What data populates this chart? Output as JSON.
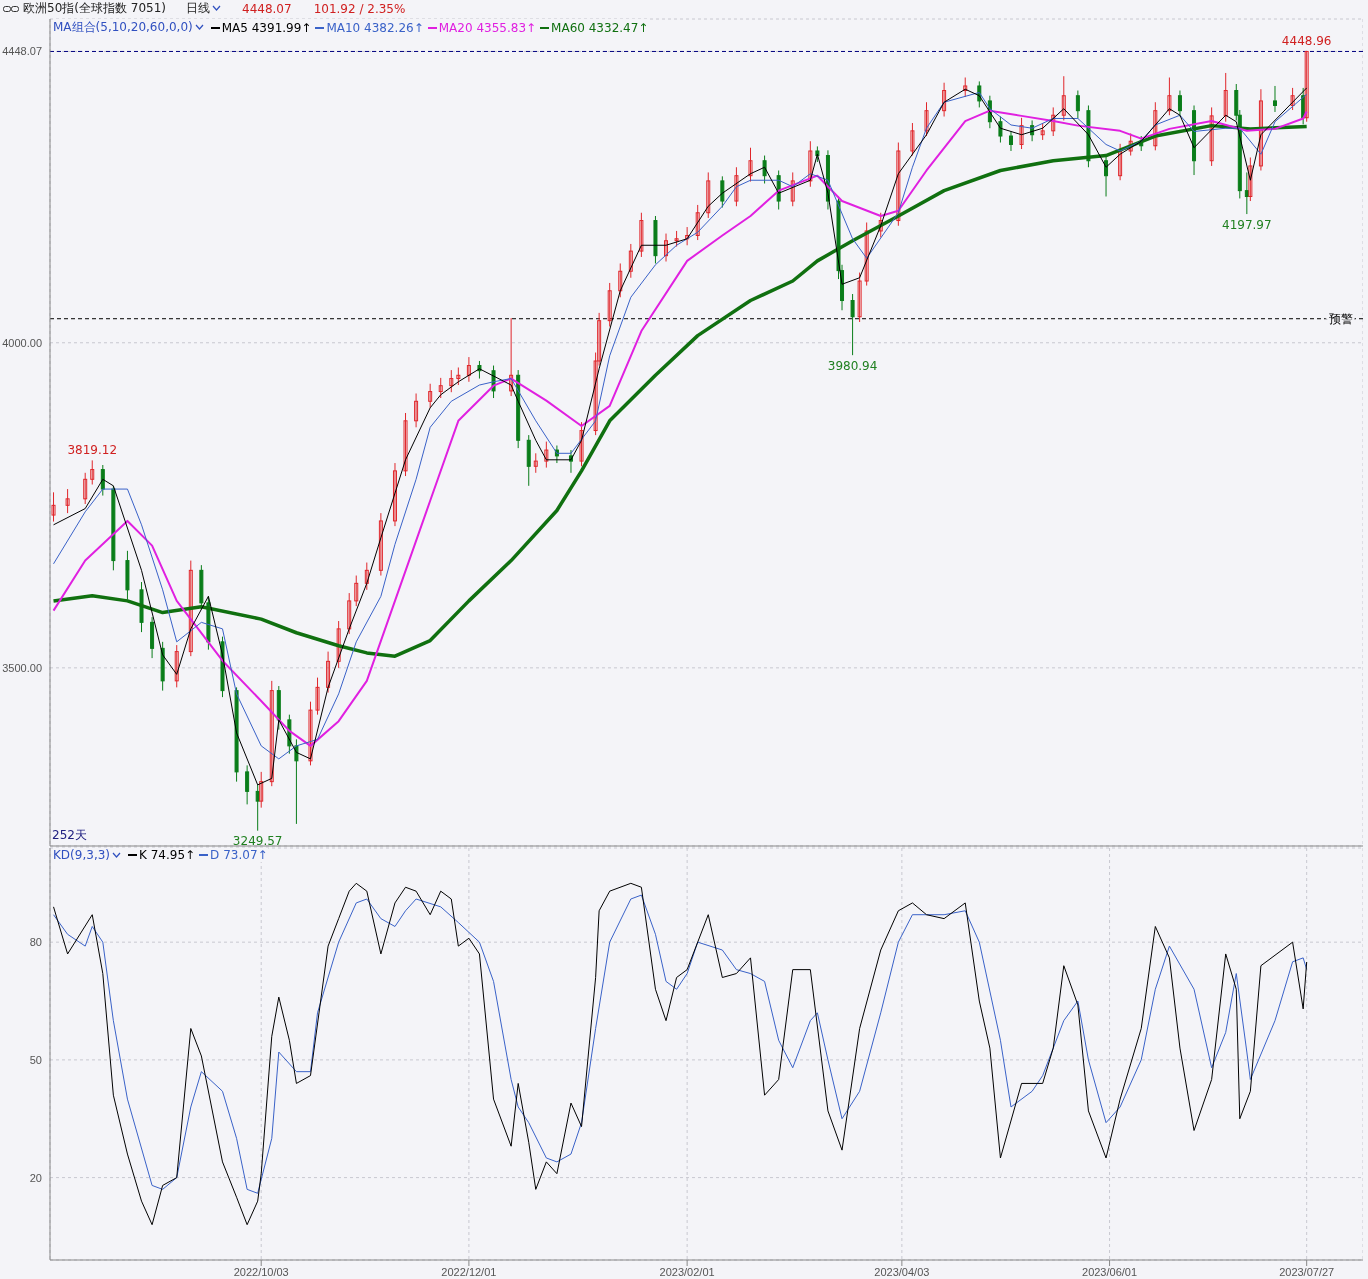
{
  "chart_data": [
    {
      "type": "candlestick",
      "title": "欧洲50指(全球指数 7051)",
      "subtitle": "日线",
      "annotations": [
        "4448.07",
        "101.92 / 2.35%",
        "252天",
        {
          "text": "3819.12",
          "y": 3819.12
        },
        {
          "text": "3249.57",
          "y": 3249.57
        },
        {
          "text": "3980.94",
          "y": 3980.94
        },
        {
          "text": "4197.97",
          "y": 4197.97
        },
        {
          "text": "4448.96",
          "y": 4448.96
        }
      ],
      "legend_title": "MA组合(5,10,20,60,0,0)",
      "legend": "top left",
      "grid": true,
      "tick_labels": "y",
      "xlim": [
        "2022-08-04",
        "2023-08-12"
      ],
      "xticks": [
        {
          "value": "2022-10-03",
          "label": null
        },
        {
          "value": "2022-12-01",
          "label": null
        },
        {
          "value": "2023-02-01",
          "label": null
        },
        {
          "value": "2023-04-03",
          "label": null
        },
        {
          "value": "2023-06-01",
          "label": null
        },
        {
          "value": "2023-07-27",
          "label": null
        }
      ],
      "ylim": [
        3226,
        4498
      ],
      "yticks": [
        {
          "value": 3500,
          "label": "3500.00"
        },
        {
          "value": 4000,
          "label": "4000.00"
        },
        {
          "value": 4448.07,
          "label": "4448.07"
        }
      ],
      "ref_lines": [
        {
          "axis": "y",
          "value": 4448.07,
          "color": "#000080",
          "line_style": "dashed"
        },
        {
          "axis": "y",
          "value": 4037,
          "label": "预警",
          "color": "#000000",
          "line_style": "dashed"
        }
      ],
      "x": [
        "2022-08-05",
        "2022-08-09",
        "2022-08-14",
        "2022-08-16",
        "2022-08-19",
        "2022-08-22",
        "2022-08-26",
        "2022-08-30",
        "2022-09-02",
        "2022-09-05",
        "2022-09-09",
        "2022-09-13",
        "2022-09-16",
        "2022-09-18",
        "2022-09-22",
        "2022-09-26",
        "2022-09-29",
        "2022-10-02",
        "2022-10-03",
        "2022-10-06",
        "2022-10-08",
        "2022-10-11",
        "2022-10-13",
        "2022-10-17",
        "2022-10-19",
        "2022-10-22",
        "2022-10-25",
        "2022-10-28",
        "2022-10-30",
        "2022-11-02",
        "2022-11-06",
        "2022-11-10",
        "2022-11-13",
        "2022-11-16",
        "2022-11-20",
        "2022-11-23",
        "2022-11-26",
        "2022-11-28",
        "2022-12-01",
        "2022-12-04",
        "2022-12-08",
        "2022-12-13",
        "2022-12-15",
        "2022-12-18",
        "2022-12-20",
        "2022-12-23",
        "2022-12-26",
        "2022-12-30",
        "2023-01-02",
        "2023-01-06",
        "2023-01-07",
        "2023-01-10",
        "2023-01-13",
        "2023-01-16",
        "2023-01-19",
        "2023-01-23",
        "2023-01-26",
        "2023-01-29",
        "2023-02-01",
        "2023-02-04",
        "2023-02-07",
        "2023-02-11",
        "2023-02-15",
        "2023-02-19",
        "2023-02-23",
        "2023-02-27",
        "2023-03-03",
        "2023-03-08",
        "2023-03-10",
        "2023-03-13",
        "2023-03-16",
        "2023-03-17",
        "2023-03-20",
        "2023-03-22",
        "2023-03-24",
        "2023-03-28",
        "2023-04-02",
        "2023-04-06",
        "2023-04-10",
        "2023-04-15",
        "2023-04-21",
        "2023-04-25",
        "2023-04-28",
        "2023-05-01",
        "2023-05-04",
        "2023-05-07",
        "2023-05-10",
        "2023-05-13",
        "2023-05-16",
        "2023-05-19",
        "2023-05-23",
        "2023-05-26",
        "2023-05-31",
        "2023-06-04",
        "2023-06-07",
        "2023-06-10",
        "2023-06-14",
        "2023-06-18",
        "2023-06-21",
        "2023-06-25",
        "2023-06-30",
        "2023-07-04",
        "2023-07-07",
        "2023-07-08",
        "2023-07-10",
        "2023-07-11",
        "2023-07-14",
        "2023-07-18",
        "2023-07-23",
        "2023-07-26",
        "2023-07-27"
      ],
      "ohlc": [
        [
          3735,
          3770,
          3725,
          3750
        ],
        [
          3750,
          3775,
          3738,
          3760
        ],
        [
          3760,
          3800,
          3752,
          3790
        ],
        [
          3790,
          3819.12,
          3782,
          3805
        ],
        [
          3805,
          3812,
          3765,
          3775
        ],
        [
          3775,
          3780,
          3650,
          3665
        ],
        [
          3665,
          3680,
          3605,
          3620
        ],
        [
          3620,
          3632,
          3555,
          3570
        ],
        [
          3570,
          3578,
          3515,
          3530
        ],
        [
          3530,
          3540,
          3465,
          3480
        ],
        [
          3480,
          3535,
          3470,
          3525
        ],
        [
          3525,
          3665,
          3518,
          3650
        ],
        [
          3650,
          3658,
          3590,
          3600
        ],
        [
          3600,
          3610,
          3528,
          3540
        ],
        [
          3540,
          3548,
          3455,
          3465
        ],
        [
          3465,
          3470,
          3325,
          3340
        ],
        [
          3340,
          3350,
          3290,
          3310
        ],
        [
          3310,
          3320,
          3249.57,
          3295
        ],
        [
          3295,
          3340,
          3285,
          3325
        ],
        [
          3325,
          3480,
          3318,
          3465
        ],
        [
          3465,
          3472,
          3405,
          3420
        ],
        [
          3420,
          3428,
          3368,
          3380
        ],
        [
          3380,
          3390,
          3260,
          3357
        ],
        [
          3357,
          3448,
          3350,
          3435
        ],
        [
          3435,
          3485,
          3428,
          3470
        ],
        [
          3470,
          3525,
          3462,
          3510
        ],
        [
          3510,
          3572,
          3500,
          3560
        ],
        [
          3560,
          3615,
          3552,
          3603
        ],
        [
          3603,
          3642,
          3595,
          3630
        ],
        [
          3630,
          3662,
          3620,
          3650
        ],
        [
          3650,
          3738,
          3642,
          3726
        ],
        [
          3726,
          3815,
          3718,
          3803
        ],
        [
          3803,
          3892,
          3795,
          3880
        ],
        [
          3880,
          3922,
          3870,
          3910
        ],
        [
          3910,
          3937,
          3900,
          3925
        ],
        [
          3925,
          3946,
          3915,
          3934
        ],
        [
          3934,
          3958,
          3924,
          3945
        ],
        [
          3945,
          3962,
          3935,
          3950
        ],
        [
          3950,
          3978,
          3940,
          3965
        ],
        [
          3965,
          3972,
          3945,
          3957
        ],
        [
          3957,
          3965,
          3915,
          3926
        ],
        [
          3926,
          4038,
          3918,
          3950
        ],
        [
          3950,
          3958,
          3838,
          3850
        ],
        [
          3850,
          3858,
          3780,
          3810
        ],
        [
          3810,
          3830,
          3800,
          3818
        ],
        [
          3818,
          3848,
          3808,
          3835
        ],
        [
          3835,
          3842,
          3815,
          3826
        ],
        [
          3826,
          3835,
          3800,
          3818
        ],
        [
          3818,
          3878,
          3810,
          3865
        ],
        [
          3865,
          3985,
          3858,
          3972
        ],
        [
          3972,
          4046,
          3965,
          4034
        ],
        [
          4034,
          4092,
          4025,
          4080
        ],
        [
          4080,
          4122,
          4070,
          4110
        ],
        [
          4110,
          4152,
          4100,
          4141
        ],
        [
          4141,
          4200,
          4132,
          4188
        ],
        [
          4188,
          4195,
          4122,
          4134
        ],
        [
          4134,
          4168,
          4125,
          4157
        ],
        [
          4157,
          4172,
          4148,
          4160
        ],
        [
          4160,
          4178,
          4150,
          4165
        ],
        [
          4165,
          4212,
          4158,
          4200
        ],
        [
          4200,
          4262,
          4192,
          4249
        ],
        [
          4249,
          4256,
          4208,
          4218
        ],
        [
          4218,
          4270,
          4210,
          4257
        ],
        [
          4257,
          4300,
          4248,
          4280
        ],
        [
          4280,
          4288,
          4245,
          4257
        ],
        [
          4257,
          4265,
          4205,
          4218
        ],
        [
          4218,
          4262,
          4210,
          4249
        ],
        [
          4249,
          4310,
          4240,
          4295
        ],
        [
          4295,
          4302,
          4278,
          4288
        ],
        [
          4288,
          4296,
          4205,
          4218
        ],
        [
          4218,
          4225,
          4098,
          4111
        ],
        [
          4111,
          4120,
          4050,
          4065
        ],
        [
          4065,
          4075,
          3980.94,
          4040
        ],
        [
          4040,
          4108,
          4032,
          4095
        ],
        [
          4095,
          4185,
          4088,
          4172
        ],
        [
          4172,
          4200,
          4162,
          4188
        ],
        [
          4188,
          4308,
          4180,
          4295
        ],
        [
          4295,
          4338,
          4288,
          4326
        ],
        [
          4326,
          4370,
          4318,
          4357
        ],
        [
          4357,
          4400,
          4348,
          4388
        ],
        [
          4388,
          4408,
          4378,
          4395
        ],
        [
          4395,
          4402,
          4362,
          4372
        ],
        [
          4372,
          4380,
          4330,
          4340
        ],
        [
          4340,
          4348,
          4308,
          4318
        ],
        [
          4318,
          4325,
          4295,
          4305
        ],
        [
          4305,
          4346,
          4298,
          4334
        ],
        [
          4334,
          4342,
          4310,
          4320
        ],
        [
          4320,
          4338,
          4312,
          4326
        ],
        [
          4326,
          4362,
          4318,
          4350
        ],
        [
          4350,
          4410,
          4342,
          4380
        ],
        [
          4380,
          4388,
          4345,
          4357
        ],
        [
          4357,
          4365,
          4270,
          4280
        ],
        [
          4280,
          4288,
          4225,
          4257
        ],
        [
          4257,
          4306,
          4250,
          4295
        ],
        [
          4295,
          4322,
          4288,
          4310
        ],
        [
          4310,
          4318,
          4295,
          4303
        ],
        [
          4303,
          4370,
          4296,
          4357
        ],
        [
          4357,
          4408,
          4350,
          4380
        ],
        [
          4380,
          4388,
          4348,
          4357
        ],
        [
          4357,
          4365,
          4258,
          4280
        ],
        [
          4280,
          4362,
          4272,
          4349
        ],
        [
          4349,
          4415,
          4340,
          4388
        ],
        [
          4388,
          4398,
          4342,
          4350
        ],
        [
          4350,
          4358,
          4222,
          4234
        ],
        [
          4234,
          4262,
          4197.97,
          4225
        ],
        [
          4225,
          4285,
          4218,
          4272
        ],
        [
          4272,
          4390,
          4265,
          4372
        ],
        [
          4372,
          4395,
          4355,
          4365
        ],
        [
          4365,
          4392,
          4358,
          4380
        ],
        [
          4380,
          4392,
          4336,
          4346.15
        ],
        [
          4346.15,
          4448.96,
          4340,
          4448.07
        ]
      ],
      "series": [
        {
          "name": "MA5 4391.99↑",
          "type": "line",
          "color": "#000000",
          "x": [
            "2022-08-05",
            "2022-08-14",
            "2022-08-19",
            "2022-08-22",
            "2022-08-30",
            "2022-09-05",
            "2022-09-09",
            "2022-09-13",
            "2022-09-18",
            "2022-09-22",
            "2022-09-26",
            "2022-10-02",
            "2022-10-06",
            "2022-10-08",
            "2022-10-13",
            "2022-10-17",
            "2022-10-22",
            "2022-10-28",
            "2022-11-02",
            "2022-11-06",
            "2022-11-13",
            "2022-11-20",
            "2022-11-23",
            "2022-11-28",
            "2022-12-04",
            "2022-12-13",
            "2022-12-15",
            "2022-12-20",
            "2022-12-23",
            "2022-12-30",
            "2023-01-02",
            "2023-01-07",
            "2023-01-13",
            "2023-01-19",
            "2023-01-26",
            "2023-02-01",
            "2023-02-07",
            "2023-02-11",
            "2023-02-19",
            "2023-02-23",
            "2023-02-27",
            "2023-03-08",
            "2023-03-10",
            "2023-03-13",
            "2023-03-17",
            "2023-03-22",
            "2023-03-28",
            "2023-04-02",
            "2023-04-10",
            "2023-04-15",
            "2023-04-21",
            "2023-04-25",
            "2023-05-01",
            "2023-05-07",
            "2023-05-13",
            "2023-05-19",
            "2023-05-26",
            "2023-05-31",
            "2023-06-04",
            "2023-06-10",
            "2023-06-18",
            "2023-06-21",
            "2023-06-25",
            "2023-07-04",
            "2023-07-07",
            "2023-07-11",
            "2023-07-14",
            "2023-07-23",
            "2023-07-27"
          ],
          "values": [
            3720,
            3745,
            3790,
            3780,
            3650,
            3520,
            3490,
            3560,
            3610,
            3520,
            3400,
            3320,
            3330,
            3420,
            3370,
            3360,
            3470,
            3560,
            3630,
            3700,
            3820,
            3900,
            3920,
            3940,
            3960,
            3935,
            3910,
            3850,
            3820,
            3820,
            3850,
            3960,
            4080,
            4150,
            4150,
            4160,
            4210,
            4230,
            4260,
            4270,
            4230,
            4250,
            4290,
            4230,
            4090,
            4100,
            4180,
            4260,
            4320,
            4370,
            4390,
            4380,
            4330,
            4320,
            4330,
            4360,
            4320,
            4270,
            4290,
            4310,
            4360,
            4350,
            4300,
            4350,
            4340,
            4250,
            4320,
            4370,
            4391.99
          ]
        },
        {
          "name": "MA10 4382.26↑",
          "type": "line",
          "color": "#3a62c8",
          "x": [
            "2022-08-05",
            "2022-08-14",
            "2022-08-19",
            "2022-08-26",
            "2022-08-30",
            "2022-09-05",
            "2022-09-09",
            "2022-09-16",
            "2022-09-22",
            "2022-09-26",
            "2022-10-03",
            "2022-10-08",
            "2022-10-13",
            "2022-10-19",
            "2022-10-25",
            "2022-10-30",
            "2022-11-06",
            "2022-11-10",
            "2022-11-16",
            "2022-11-20",
            "2022-11-26",
            "2022-12-04",
            "2022-12-08",
            "2022-12-13",
            "2022-12-20",
            "2022-12-26",
            "2022-12-30",
            "2023-01-06",
            "2023-01-10",
            "2023-01-16",
            "2023-01-23",
            "2023-01-29",
            "2023-02-04",
            "2023-02-11",
            "2023-02-15",
            "2023-02-19",
            "2023-02-27",
            "2023-03-03",
            "2023-03-08",
            "2023-03-13",
            "2023-03-20",
            "2023-03-24",
            "2023-04-02",
            "2023-04-06",
            "2023-04-10",
            "2023-04-15",
            "2023-04-25",
            "2023-04-28",
            "2023-05-04",
            "2023-05-10",
            "2023-05-16",
            "2023-05-23",
            "2023-05-31",
            "2023-06-04",
            "2023-06-10",
            "2023-06-14",
            "2023-06-21",
            "2023-06-25",
            "2023-07-04",
            "2023-07-08",
            "2023-07-14",
            "2023-07-18",
            "2023-07-27"
          ],
          "values": [
            3660,
            3740,
            3775,
            3775,
            3720,
            3620,
            3540,
            3570,
            3560,
            3460,
            3380,
            3360,
            3380,
            3390,
            3460,
            3540,
            3610,
            3690,
            3790,
            3870,
            3910,
            3935,
            3940,
            3945,
            3880,
            3830,
            3830,
            3880,
            3980,
            4070,
            4120,
            4150,
            4170,
            4210,
            4240,
            4250,
            4250,
            4240,
            4260,
            4250,
            4160,
            4130,
            4200,
            4270,
            4330,
            4370,
            4385,
            4360,
            4335,
            4330,
            4345,
            4345,
            4305,
            4295,
            4310,
            4335,
            4350,
            4325,
            4330,
            4330,
            4290,
            4340,
            4382.26
          ]
        },
        {
          "name": "MA20 4355.83↑",
          "type": "line",
          "color": "#e020e0",
          "x": [
            "2022-08-05",
            "2022-08-14",
            "2022-08-26",
            "2022-09-02",
            "2022-09-09",
            "2022-09-22",
            "2022-10-03",
            "2022-10-11",
            "2022-10-17",
            "2022-10-25",
            "2022-11-02",
            "2022-11-10",
            "2022-11-20",
            "2022-11-28",
            "2022-12-08",
            "2022-12-13",
            "2022-12-23",
            "2023-01-02",
            "2023-01-10",
            "2023-01-19",
            "2023-02-01",
            "2023-02-11",
            "2023-02-19",
            "2023-02-27",
            "2023-03-10",
            "2023-03-17",
            "2023-03-28",
            "2023-04-02",
            "2023-04-10",
            "2023-04-21",
            "2023-04-28",
            "2023-05-07",
            "2023-05-16",
            "2023-05-23",
            "2023-06-04",
            "2023-06-10",
            "2023-06-18",
            "2023-06-30",
            "2023-07-10",
            "2023-07-18",
            "2023-07-26",
            "2023-07-27"
          ],
          "values": [
            3588,
            3665,
            3726,
            3688,
            3603,
            3511,
            3449,
            3403,
            3380,
            3418,
            3480,
            3603,
            3757,
            3880,
            3934,
            3945,
            3911,
            3872,
            3903,
            4018,
            4126,
            4165,
            4195,
            4234,
            4257,
            4218,
            4195,
            4203,
            4265,
            4341,
            4357,
            4349,
            4341,
            4334,
            4326,
            4314,
            4329,
            4341,
            4326,
            4329,
            4345,
            4355.83
          ]
        },
        {
          "name": "MA60 4332.47↑",
          "type": "line",
          "color": "#107010",
          "x": [
            "2022-08-05",
            "2022-08-16",
            "2022-08-26",
            "2022-09-05",
            "2022-09-16",
            "2022-10-03",
            "2022-10-13",
            "2022-10-25",
            "2022-11-02",
            "2022-11-10",
            "2022-11-20",
            "2022-12-01",
            "2022-12-13",
            "2022-12-26",
            "2023-01-02",
            "2023-01-10",
            "2023-01-23",
            "2023-02-04",
            "2023-02-19",
            "2023-03-03",
            "2023-03-10",
            "2023-03-20",
            "2023-04-02",
            "2023-04-15",
            "2023-05-01",
            "2023-05-16",
            "2023-05-31",
            "2023-06-14",
            "2023-06-30",
            "2023-07-11",
            "2023-07-27"
          ],
          "values": [
            3603,
            3611,
            3603,
            3585,
            3594,
            3575,
            3554,
            3534,
            3523,
            3518,
            3542,
            3603,
            3665,
            3742,
            3803,
            3880,
            3950,
            4011,
            4065,
            4095,
            4126,
            4157,
            4195,
            4234,
            4265,
            4280,
            4288,
            4318,
            4334,
            4329,
            4332.47
          ]
        }
      ]
    },
    {
      "type": "line",
      "legend_title": "KD(9,3,3)",
      "legend": "top left",
      "grid": true,
      "xlim": [
        "2022-08-04",
        "2023-08-12"
      ],
      "xticks": [
        {
          "value": "2022-10-03",
          "label": "2022/10/03"
        },
        {
          "value": "2022-12-01",
          "label": "2022/12/01"
        },
        {
          "value": "2023-02-01",
          "label": "2023/02/01"
        },
        {
          "value": "2023-04-03",
          "label": "2023/04/03"
        },
        {
          "value": "2023-06-01",
          "label": "2023/06/01"
        },
        {
          "value": "2023-07-27",
          "label": "2023/07/27"
        }
      ],
      "ylim": [
        -1,
        104
      ],
      "yticks": [
        20,
        50,
        80
      ],
      "series": [
        {
          "name": "K 74.95↑",
          "color": "#000000",
          "x": [
            "2022-08-05",
            "2022-08-09",
            "2022-08-16",
            "2022-08-19",
            "2022-08-22",
            "2022-08-26",
            "2022-08-30",
            "2022-09-02",
            "2022-09-05",
            "2022-09-09",
            "2022-09-13",
            "2022-09-16",
            "2022-09-22",
            "2022-09-26",
            "2022-09-29",
            "2022-10-02",
            "2022-10-03",
            "2022-10-06",
            "2022-10-08",
            "2022-10-11",
            "2022-10-13",
            "2022-10-17",
            "2022-10-22",
            "2022-10-25",
            "2022-10-28",
            "2022-10-30",
            "2022-11-02",
            "2022-11-06",
            "2022-11-10",
            "2022-11-13",
            "2022-11-16",
            "2022-11-20",
            "2022-11-23",
            "2022-11-26",
            "2022-11-28",
            "2022-12-01",
            "2022-12-04",
            "2022-12-08",
            "2022-12-13",
            "2022-12-15",
            "2022-12-18",
            "2022-12-20",
            "2022-12-23",
            "2022-12-26",
            "2022-12-30",
            "2023-01-02",
            "2023-01-06",
            "2023-01-07",
            "2023-01-10",
            "2023-01-16",
            "2023-01-19",
            "2023-01-23",
            "2023-01-26",
            "2023-01-29",
            "2023-02-01",
            "2023-02-07",
            "2023-02-11",
            "2023-02-15",
            "2023-02-19",
            "2023-02-23",
            "2023-02-27",
            "2023-03-03",
            "2023-03-08",
            "2023-03-13",
            "2023-03-17",
            "2023-03-22",
            "2023-03-28",
            "2023-04-02",
            "2023-04-06",
            "2023-04-10",
            "2023-04-15",
            "2023-04-21",
            "2023-04-25",
            "2023-04-28",
            "2023-05-01",
            "2023-05-07",
            "2023-05-13",
            "2023-05-16",
            "2023-05-19",
            "2023-05-23",
            "2023-05-26",
            "2023-05-31",
            "2023-06-04",
            "2023-06-10",
            "2023-06-14",
            "2023-06-18",
            "2023-06-21",
            "2023-06-25",
            "2023-06-30",
            "2023-07-04",
            "2023-07-07",
            "2023-07-08",
            "2023-07-11",
            "2023-07-14",
            "2023-07-23",
            "2023-07-26",
            "2023-07-27"
          ],
          "values": [
            89,
            77,
            87,
            72,
            41,
            26,
            14,
            8,
            18,
            20,
            58,
            51,
            24,
            15,
            8,
            14,
            21,
            56,
            66,
            55,
            44,
            46,
            79,
            86,
            93,
            95,
            93,
            77,
            90,
            94,
            93,
            87,
            93,
            91,
            79,
            81,
            77,
            40,
            28,
            44,
            29,
            17,
            24,
            21,
            39,
            33,
            71,
            88,
            93,
            95,
            94,
            68,
            60,
            71,
            73,
            87,
            71,
            72,
            76,
            41,
            45,
            73,
            73,
            37,
            27,
            58,
            78,
            88,
            90,
            87,
            86,
            90,
            65,
            53,
            25,
            44,
            44,
            53,
            74,
            64,
            37,
            25,
            40,
            58,
            84,
            76,
            53,
            32,
            45,
            77,
            68,
            35,
            42,
            74,
            80,
            63,
            74.95
          ]
        },
        {
          "name": "D 73.07↑",
          "color": "#3a62c8",
          "x": [
            "2022-08-05",
            "2022-08-09",
            "2022-08-14",
            "2022-08-16",
            "2022-08-19",
            "2022-08-22",
            "2022-08-26",
            "2022-09-02",
            "2022-09-05",
            "2022-09-09",
            "2022-09-13",
            "2022-09-16",
            "2022-09-22",
            "2022-09-26",
            "2022-09-29",
            "2022-10-02",
            "2022-10-06",
            "2022-10-08",
            "2022-10-13",
            "2022-10-17",
            "2022-10-19",
            "2022-10-25",
            "2022-10-30",
            "2022-11-02",
            "2022-11-06",
            "2022-11-10",
            "2022-11-13",
            "2022-11-16",
            "2022-11-23",
            "2022-11-28",
            "2022-12-04",
            "2022-12-08",
            "2022-12-13",
            "2022-12-15",
            "2022-12-18",
            "2022-12-23",
            "2022-12-26",
            "2022-12-30",
            "2023-01-02",
            "2023-01-06",
            "2023-01-10",
            "2023-01-16",
            "2023-01-19",
            "2023-01-23",
            "2023-01-26",
            "2023-01-29",
            "2023-02-01",
            "2023-02-04",
            "2023-02-11",
            "2023-02-15",
            "2023-02-19",
            "2023-02-23",
            "2023-02-27",
            "2023-03-03",
            "2023-03-08",
            "2023-03-10",
            "2023-03-13",
            "2023-03-17",
            "2023-03-22",
            "2023-03-28",
            "2023-04-02",
            "2023-04-06",
            "2023-04-10",
            "2023-04-15",
            "2023-04-21",
            "2023-04-25",
            "2023-05-01",
            "2023-05-04",
            "2023-05-10",
            "2023-05-13",
            "2023-05-19",
            "2023-05-23",
            "2023-05-26",
            "2023-05-31",
            "2023-06-04",
            "2023-06-10",
            "2023-06-14",
            "2023-06-18",
            "2023-06-25",
            "2023-06-30",
            "2023-07-04",
            "2023-07-07",
            "2023-07-10",
            "2023-07-11",
            "2023-07-18",
            "2023-07-23",
            "2023-07-26",
            "2023-07-27"
          ],
          "values": [
            87,
            82,
            79,
            84,
            80,
            60,
            40,
            18,
            17,
            20,
            38,
            47,
            42,
            30,
            17,
            16,
            30,
            52,
            47,
            47,
            62,
            80,
            90,
            91,
            86,
            84,
            88,
            91,
            89,
            85,
            80,
            70,
            45,
            38,
            34,
            25,
            24,
            26,
            34,
            58,
            80,
            91,
            92,
            82,
            70,
            68,
            72,
            80,
            78,
            73,
            72,
            70,
            55,
            48,
            60,
            62,
            50,
            35,
            42,
            62,
            80,
            87,
            87,
            87,
            88,
            80,
            55,
            38,
            42,
            46,
            60,
            65,
            50,
            34,
            38,
            50,
            68,
            79,
            68,
            48,
            57,
            72,
            52,
            45,
            60,
            75,
            76,
            73.07
          ]
        }
      ]
    }
  ]
}
